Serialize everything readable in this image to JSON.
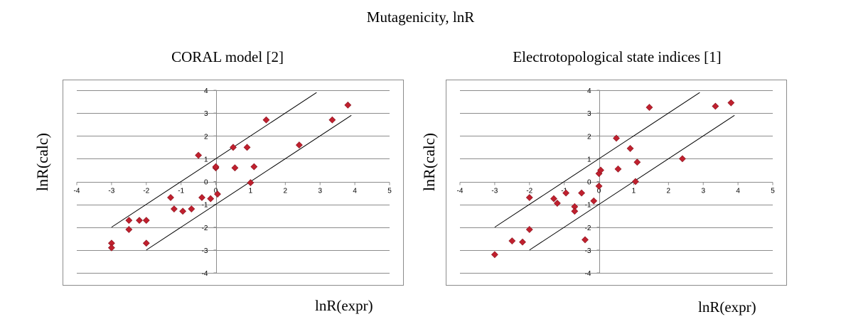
{
  "figure": {
    "title": "Mutagenicity, lnR"
  },
  "chart_data": [
    {
      "type": "scatter",
      "title": "CORAL model [2]",
      "xlabel": "lnR(expr)",
      "ylabel": "lnR(calc)",
      "xlim": [
        -4,
        5
      ],
      "ylim": [
        -4,
        4
      ],
      "xticks": [
        -4,
        -3,
        -2,
        -1,
        0,
        1,
        2,
        3,
        4,
        5
      ],
      "yticks": [
        -4,
        -3,
        -2,
        -1,
        0,
        1,
        2,
        3,
        4
      ],
      "xtick_labels": [
        "-4",
        "-3",
        "-2",
        "-1",
        "0",
        "1",
        "2",
        "3",
        "4",
        "5"
      ],
      "ytick_labels": [
        "-4",
        "-3",
        "-2",
        "-1",
        "0",
        "1",
        "2",
        "3",
        "4"
      ],
      "grid": "horizontal",
      "marker_color": "#c0202e",
      "series": [
        {
          "x": [
            -3.0,
            -3.0,
            -2.5,
            -2.5,
            -2.2,
            -2.0,
            -2.0,
            -1.3,
            -1.2,
            -0.95,
            -0.7,
            -0.5,
            -0.4,
            -0.15,
            0.0,
            0.0,
            0.05,
            0.5,
            0.55,
            0.9,
            1.0,
            1.1,
            1.45,
            2.4,
            3.35,
            3.8
          ],
          "y": [
            -2.7,
            -2.9,
            -1.7,
            -2.1,
            -1.7,
            -2.7,
            -1.7,
            -0.7,
            -1.2,
            -1.3,
            -1.2,
            1.15,
            -0.7,
            -0.75,
            0.6,
            0.65,
            -0.55,
            1.5,
            0.6,
            1.5,
            -0.05,
            0.65,
            2.7,
            1.6,
            2.7,
            3.35
          ]
        }
      ],
      "lines": [
        {
          "x1": -3.0,
          "y1": -2.0,
          "x2": 2.9,
          "y2": 3.9
        },
        {
          "x1": -2.0,
          "y1": -3.0,
          "x2": 3.9,
          "y2": 2.9
        }
      ]
    },
    {
      "type": "scatter",
      "title": "Electrotopological state indices [1]",
      "xlabel": "lnR(expr)",
      "ylabel": "lnR(calc)",
      "xlim": [
        -4,
        5
      ],
      "ylim": [
        -4,
        4
      ],
      "xticks": [
        -4,
        -3,
        -2,
        -1,
        0,
        1,
        2,
        3,
        4,
        5
      ],
      "yticks": [
        -4,
        -3,
        -2,
        -1,
        0,
        1,
        2,
        3,
        4
      ],
      "xtick_labels": [
        "-4",
        "-3",
        "-2",
        "-1",
        "0",
        "1",
        "2",
        "3",
        "4",
        "5"
      ],
      "ytick_labels": [
        "-4",
        "-3",
        "-2",
        "-1",
        "0",
        "1",
        "2",
        "3",
        "4"
      ],
      "grid": "horizontal",
      "marker_color": "#c0202e",
      "series": [
        {
          "x": [
            -3.0,
            -2.5,
            -2.2,
            -2.0,
            -2.0,
            -1.3,
            -1.2,
            -0.95,
            -0.7,
            -0.7,
            -0.5,
            -0.4,
            -0.15,
            0.0,
            0.0,
            0.05,
            0.5,
            0.55,
            0.9,
            1.05,
            1.1,
            1.45,
            2.4,
            3.35,
            3.8
          ],
          "y": [
            -3.2,
            -2.6,
            -2.65,
            -0.7,
            -2.1,
            -0.75,
            -0.95,
            -0.5,
            -1.1,
            -1.3,
            -0.5,
            -2.55,
            -0.85,
            0.35,
            -0.2,
            0.5,
            1.9,
            0.55,
            1.45,
            0.0,
            0.85,
            3.25,
            1.0,
            3.3,
            3.45
          ]
        }
      ],
      "lines": [
        {
          "x1": -3.0,
          "y1": -2.0,
          "x2": 2.9,
          "y2": 3.9
        },
        {
          "x1": -2.0,
          "y1": -3.0,
          "x2": 3.9,
          "y2": 2.9
        }
      ]
    }
  ]
}
